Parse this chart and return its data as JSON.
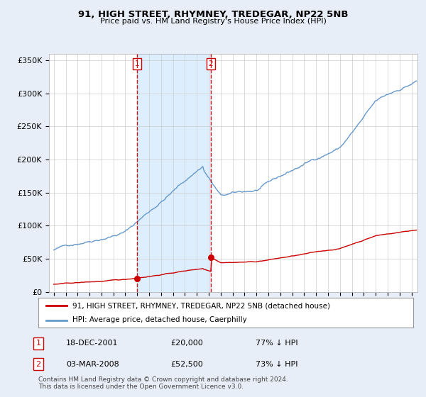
{
  "title": "91, HIGH STREET, RHYMNEY, TREDEGAR, NP22 5NB",
  "subtitle": "Price paid vs. HM Land Registry's House Price Index (HPI)",
  "sale1_date": "18-DEC-2001",
  "sale1_price": 20000,
  "sale1_pct": "77% ↓ HPI",
  "sale1_year": 2001.97,
  "sale2_date": "03-MAR-2008",
  "sale2_price": 52500,
  "sale2_pct": "73% ↓ HPI",
  "sale2_year": 2008.17,
  "red_line_color": "#cc0000",
  "blue_line_color": "#6699cc",
  "shade_color": "#ddeeff",
  "vline_color": "#cc0000",
  "legend_entry1": "91, HIGH STREET, RHYMNEY, TREDEGAR, NP22 5NB (detached house)",
  "legend_entry2": "HPI: Average price, detached house, Caerphilly",
  "footnote": "Contains HM Land Registry data © Crown copyright and database right 2024.\nThis data is licensed under the Open Government Licence v3.0.",
  "ylim": [
    0,
    360000
  ],
  "yticks": [
    0,
    50000,
    100000,
    150000,
    200000,
    250000,
    300000,
    350000
  ],
  "ytick_labels": [
    "£0",
    "£50K",
    "£100K",
    "£150K",
    "£200K",
    "£250K",
    "£300K",
    "£350K"
  ],
  "bg_color": "#e8eef8",
  "plot_bg_color": "#ffffff",
  "grid_color": "#cccccc"
}
